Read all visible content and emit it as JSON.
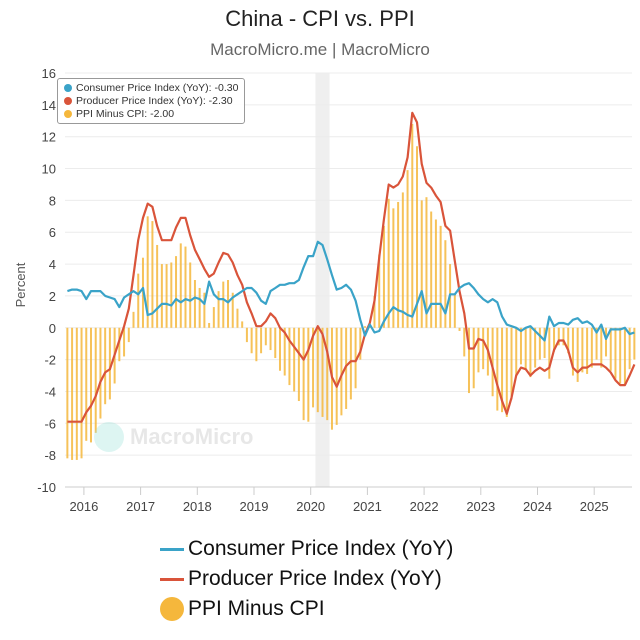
{
  "header": {
    "title": "China - CPI vs. PPI",
    "subtitle": "MacroMicro.me | MacroMicro"
  },
  "watermark": {
    "text": "MacroMicro"
  },
  "tooltip": {
    "rows": [
      {
        "label": "Consumer Price Index (YoY): -0.30",
        "color": "#3aa3c8"
      },
      {
        "label": "Producer Price Index (YoY): -2.30",
        "color": "#d9543a"
      },
      {
        "label": "PPI Minus CPI: -2.00",
        "color": "#f5b73c"
      }
    ]
  },
  "legend": [
    {
      "label": "Consumer Price Index (YoY)",
      "type": "line",
      "color": "#3aa3c8"
    },
    {
      "label": "Producer Price Index (YoY)",
      "type": "line",
      "color": "#d9543a"
    },
    {
      "label": "PPI Minus CPI",
      "type": "dot",
      "color": "#f5b73c"
    }
  ],
  "chart_data": {
    "type": "line",
    "title": "China - CPI vs. PPI",
    "subtitle": "MacroMicro.me | MacroMicro",
    "xlabel": "",
    "ylabel": "Percent",
    "ylim": [
      -10,
      16
    ],
    "yticks": [
      16,
      14,
      12,
      10,
      8,
      6,
      4,
      2,
      0,
      -2,
      -4,
      -6,
      -8,
      -10
    ],
    "xticks": [
      "2016",
      "2017",
      "2018",
      "2019",
      "2020",
      "2021",
      "2022",
      "2023",
      "2024",
      "2025"
    ],
    "x_start": "2015-09",
    "x_end": "2025-08",
    "frequency": "monthly",
    "highlight_band": [
      "2020-02",
      "2020-04"
    ],
    "grid": true,
    "legend_position": "bottom",
    "series": [
      {
        "name": "Consumer Price Index (YoY)",
        "type": "line",
        "color": "#3aa3c8",
        "values": [
          2.3,
          2.4,
          2.4,
          2.3,
          1.8,
          2.3,
          2.3,
          2.3,
          2.0,
          1.9,
          1.8,
          1.3,
          1.9,
          2.1,
          2.3,
          2.1,
          2.5,
          0.8,
          0.9,
          1.2,
          1.5,
          1.5,
          1.4,
          1.8,
          1.6,
          1.8,
          1.7,
          1.9,
          1.8,
          1.5,
          2.9,
          2.1,
          1.8,
          1.8,
          1.6,
          1.9,
          2.1,
          2.3,
          2.5,
          2.5,
          2.2,
          1.7,
          1.5,
          2.3,
          2.5,
          2.7,
          2.7,
          2.8,
          2.8,
          3.0,
          3.8,
          4.5,
          4.5,
          5.4,
          5.2,
          4.3,
          3.3,
          2.4,
          2.5,
          2.7,
          2.4,
          1.7,
          0.5,
          -0.5,
          0.2,
          -0.3,
          -0.2,
          0.4,
          0.9,
          1.3,
          1.1,
          1.0,
          0.8,
          0.7,
          1.5,
          2.3,
          0.9,
          1.5,
          1.5,
          1.5,
          0.9,
          2.1,
          2.1,
          2.5,
          2.7,
          2.8,
          2.5,
          2.1,
          1.8,
          1.6,
          1.8,
          1.6,
          0.7,
          0.2,
          0.1,
          0.0,
          -0.2,
          0.0,
          0.1,
          -0.2,
          -0.5,
          -0.8,
          0.7,
          0.1,
          0.3,
          0.3,
          0.2,
          0.5,
          0.6,
          0.3,
          0.4,
          0.2,
          -0.3,
          0.2,
          -0.7,
          -0.1,
          -0.1,
          -0.1,
          0.0,
          -0.4,
          -0.3
        ]
      },
      {
        "name": "Producer Price Index (YoY)",
        "type": "line",
        "color": "#d9543a",
        "values": [
          -5.9,
          -5.9,
          -5.9,
          -5.9,
          -5.3,
          -4.9,
          -4.3,
          -3.4,
          -2.8,
          -2.6,
          -1.7,
          -0.8,
          0.1,
          1.2,
          3.3,
          5.5,
          6.9,
          7.8,
          7.6,
          6.4,
          5.5,
          5.5,
          5.5,
          6.3,
          6.9,
          6.9,
          5.8,
          4.9,
          4.3,
          3.7,
          3.2,
          3.4,
          4.1,
          4.7,
          4.6,
          4.1,
          3.3,
          2.7,
          1.6,
          0.9,
          0.1,
          0.1,
          0.4,
          0.9,
          0.6,
          0.0,
          -0.3,
          -0.8,
          -1.2,
          -1.6,
          -2.0,
          -1.4,
          -0.5,
          0.1,
          -0.4,
          -1.5,
          -3.1,
          -3.7,
          -3.0,
          -2.4,
          -2.1,
          -2.1,
          -1.5,
          -0.4,
          0.3,
          1.7,
          4.4,
          6.8,
          9.0,
          8.8,
          9.0,
          9.5,
          10.7,
          13.5,
          12.9,
          10.3,
          9.1,
          8.8,
          8.3,
          7.9,
          6.4,
          6.1,
          4.2,
          2.3,
          0.9,
          -1.3,
          -1.3,
          -0.7,
          -0.8,
          -1.4,
          -2.5,
          -3.6,
          -4.6,
          -5.4,
          -4.4,
          -3.0,
          -2.5,
          -2.6,
          -3.0,
          -2.7,
          -2.5,
          -2.7,
          -2.5,
          -1.4,
          -0.8,
          -0.8,
          -1.4,
          -2.5,
          -2.8,
          -2.5,
          -2.5,
          -2.3,
          -2.3,
          -2.3,
          -2.5,
          -2.8,
          -3.3,
          -3.6,
          -3.6,
          -3.0,
          -2.3
        ]
      },
      {
        "name": "PPI Minus CPI",
        "type": "bar",
        "color": "#f5b73c",
        "values": "computed as PPI minus CPI per month"
      }
    ]
  }
}
